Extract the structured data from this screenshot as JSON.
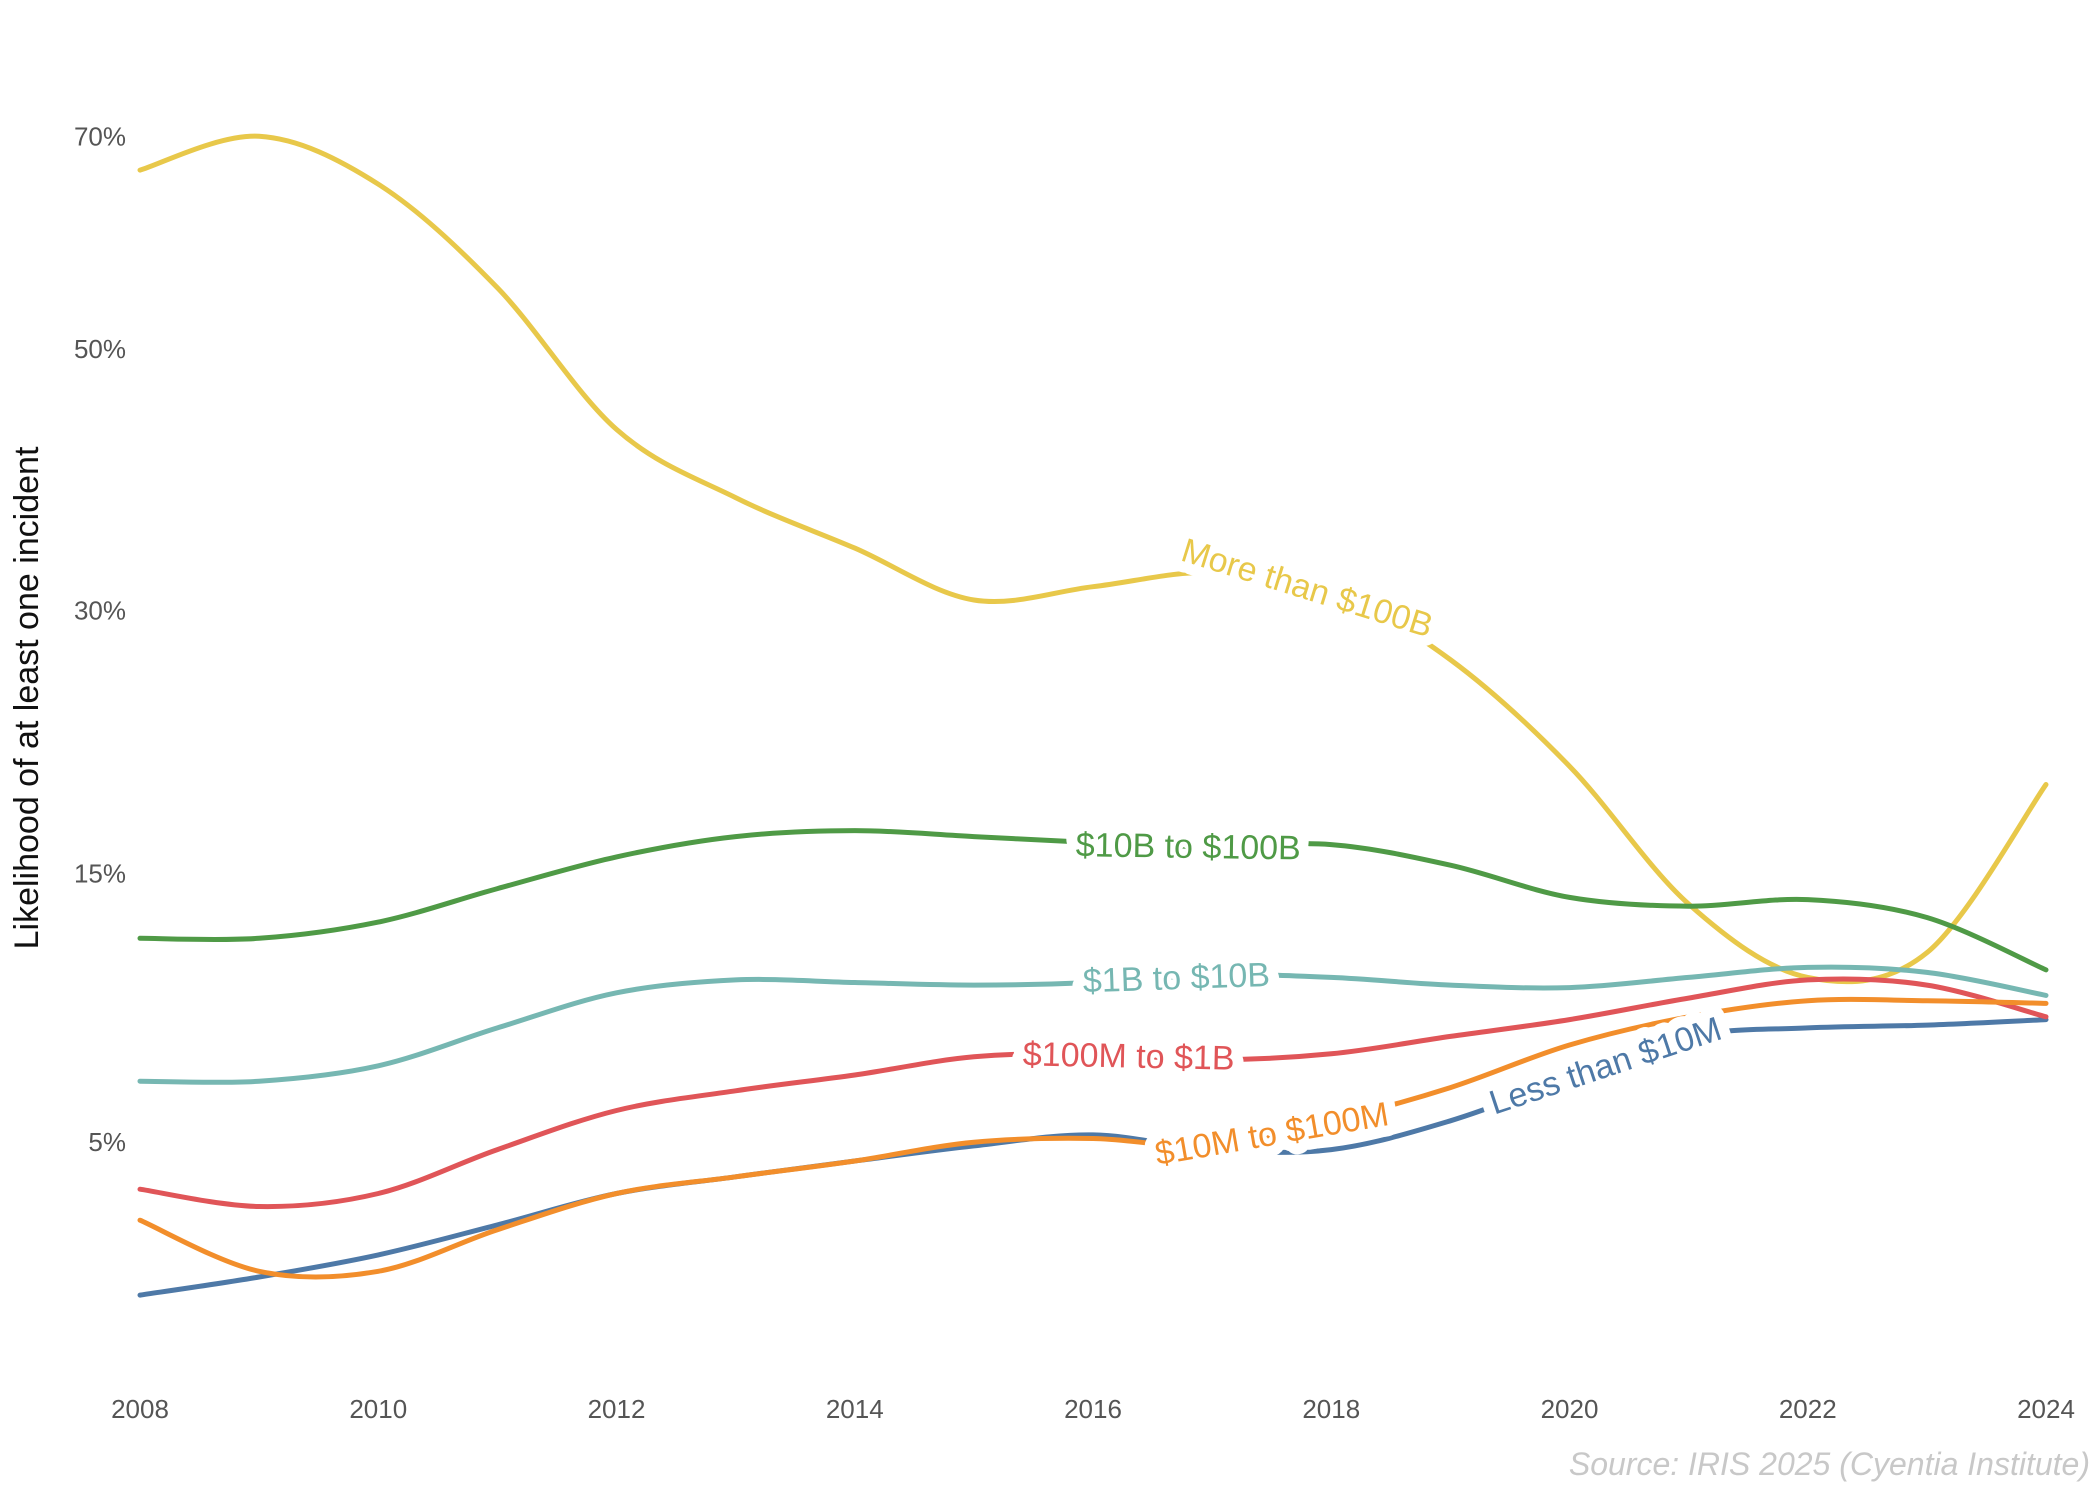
{
  "chart_data": {
    "type": "line",
    "ylabel": "Likelihood of at least one incident",
    "xlabel": "",
    "source": "Source: IRIS 2025 (Cyentia Institute)",
    "x_ticks": [
      2008,
      2010,
      2012,
      2014,
      2016,
      2018,
      2020,
      2022,
      2024
    ],
    "y_ticks": [
      {
        "value": 5,
        "label": "5%"
      },
      {
        "value": 15,
        "label": "15%"
      },
      {
        "value": 30,
        "label": "30%"
      },
      {
        "value": 50,
        "label": "50%"
      },
      {
        "value": 70,
        "label": "70%"
      }
    ],
    "y_scale": "sqrt",
    "xlim": [
      2008,
      2024
    ],
    "ylim": [
      1,
      78
    ],
    "grid": false,
    "legend": "inline labels",
    "series": [
      {
        "name": "More than $100B",
        "color": "#e8c84a",
        "label_x": 2017.8,
        "x": [
          2008,
          2009,
          2010,
          2011,
          2012,
          2013,
          2014,
          2015,
          2016,
          2017,
          2018,
          2019,
          2020,
          2021,
          2022,
          2023,
          2024
        ],
        "values": [
          66.6,
          70.0,
          65.2,
          55.4,
          43.3,
          38.0,
          34.3,
          30.7,
          31.6,
          32.6,
          31.3,
          26.8,
          20.5,
          13.6,
          10.5,
          11.5,
          19.5
        ]
      },
      {
        "name": "$10B to $100B",
        "color": "#4f9a46",
        "label_x": 2016.8,
        "x": [
          2008,
          2009,
          2010,
          2011,
          2012,
          2013,
          2014,
          2015,
          2016,
          2017,
          2018,
          2019,
          2020,
          2021,
          2022,
          2023,
          2024
        ],
        "values": [
          12.1,
          12.1,
          12.8,
          14.3,
          15.8,
          16.8,
          17.1,
          16.8,
          16.5,
          16.3,
          16.4,
          15.4,
          13.9,
          13.5,
          13.8,
          13.0,
          10.8
        ]
      },
      {
        "name": "$1B to $10B",
        "color": "#76b7b2",
        "label_x": 2016.7,
        "x": [
          2008,
          2009,
          2010,
          2011,
          2012,
          2013,
          2014,
          2015,
          2016,
          2017,
          2018,
          2019,
          2020,
          2021,
          2022,
          2023,
          2024
        ],
        "values": [
          6.8,
          6.8,
          7.3,
          8.6,
          9.9,
          10.4,
          10.3,
          10.2,
          10.3,
          10.6,
          10.5,
          10.2,
          10.1,
          10.5,
          10.9,
          10.7,
          9.8
        ]
      },
      {
        "name": "$100M to $1B",
        "color": "#e05558",
        "label_x": 2016.3,
        "x": [
          2008,
          2009,
          2010,
          2011,
          2012,
          2013,
          2014,
          2015,
          2016,
          2017,
          2018,
          2019,
          2020,
          2021,
          2022,
          2023,
          2024
        ],
        "values": [
          3.8,
          3.4,
          3.7,
          4.8,
          5.9,
          6.5,
          7.0,
          7.6,
          7.7,
          7.5,
          7.7,
          8.3,
          8.9,
          9.7,
          10.4,
          10.2,
          9.0
        ]
      },
      {
        "name": "$10M to $100M",
        "color": "#f28e2b",
        "label_x": 2017.5,
        "x": [
          2008,
          2009,
          2010,
          2011,
          2012,
          2013,
          2014,
          2015,
          2016,
          2017,
          2018,
          2019,
          2020,
          2021,
          2022,
          2023,
          2024
        ],
        "values": [
          3.1,
          2.1,
          2.1,
          2.9,
          3.7,
          4.1,
          4.5,
          5.0,
          5.1,
          4.9,
          5.6,
          6.6,
          8.0,
          9.0,
          9.6,
          9.6,
          9.5
        ]
      },
      {
        "name": "Less than $10M",
        "color": "#4e79a7",
        "label_x": 2020.3,
        "x": [
          2008,
          2009,
          2010,
          2011,
          2012,
          2013,
          2014,
          2015,
          2016,
          2017,
          2018,
          2019,
          2020,
          2021,
          2022,
          2023,
          2024
        ],
        "values": [
          1.7,
          2.0,
          2.4,
          3.0,
          3.7,
          4.1,
          4.5,
          4.9,
          5.2,
          4.8,
          4.8,
          5.6,
          6.9,
          8.3,
          8.6,
          8.7,
          8.9
        ]
      }
    ]
  }
}
